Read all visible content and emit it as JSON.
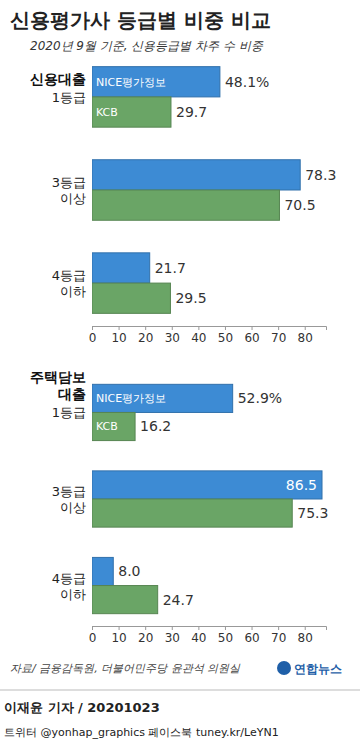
{
  "header": {
    "title": "신용평가사 등급별 비중 비교",
    "subtitle": "2020년 9월 기준, 신용등급별 차주 수 비중"
  },
  "chart_data": [
    {
      "type": "bar",
      "orientation": "horizontal",
      "title": "신용대출",
      "categories": [
        "1등급",
        "3등급 이상",
        "4등급 이하"
      ],
      "series": [
        {
          "name": "NICE평가정보",
          "color": "#3d8bd4",
          "values": [
            48.1,
            78.3,
            21.7
          ],
          "value_labels": [
            "48.1%",
            "78.3",
            "21.7"
          ]
        },
        {
          "name": "KCB",
          "color": "#6aa566",
          "values": [
            29.7,
            70.5,
            29.5
          ]
        }
      ],
      "xlim": [
        0,
        88
      ],
      "xticks": [
        0,
        10,
        20,
        30,
        40,
        50,
        60,
        70,
        80
      ],
      "grid": false,
      "data_labels": true
    },
    {
      "type": "bar",
      "orientation": "horizontal",
      "title": "주택담보 대출",
      "categories": [
        "1등급",
        "3등급 이상",
        "4등급 이하"
      ],
      "series": [
        {
          "name": "NICE평가정보",
          "color": "#3d8bd4",
          "values": [
            52.9,
            86.5,
            8.0
          ],
          "value_labels": [
            "52.9%",
            "86.5",
            "8.0"
          ]
        },
        {
          "name": "KCB",
          "color": "#6aa566",
          "values": [
            16.2,
            75.3,
            24.7
          ]
        }
      ],
      "xlim": [
        0,
        88
      ],
      "xticks": [
        0,
        10,
        20,
        30,
        40,
        50,
        60,
        70,
        80
      ],
      "grid": false,
      "data_labels": true
    }
  ],
  "footer": {
    "source": "자료/ 금융감독원, 더불어민주당 윤관석 의원실",
    "logo": "연합뉴스",
    "reporter": "이재윤 기자 / 20201023",
    "social": "트위터 @yonhap_graphics  페이스북 tuney.kr/LeYN1"
  }
}
